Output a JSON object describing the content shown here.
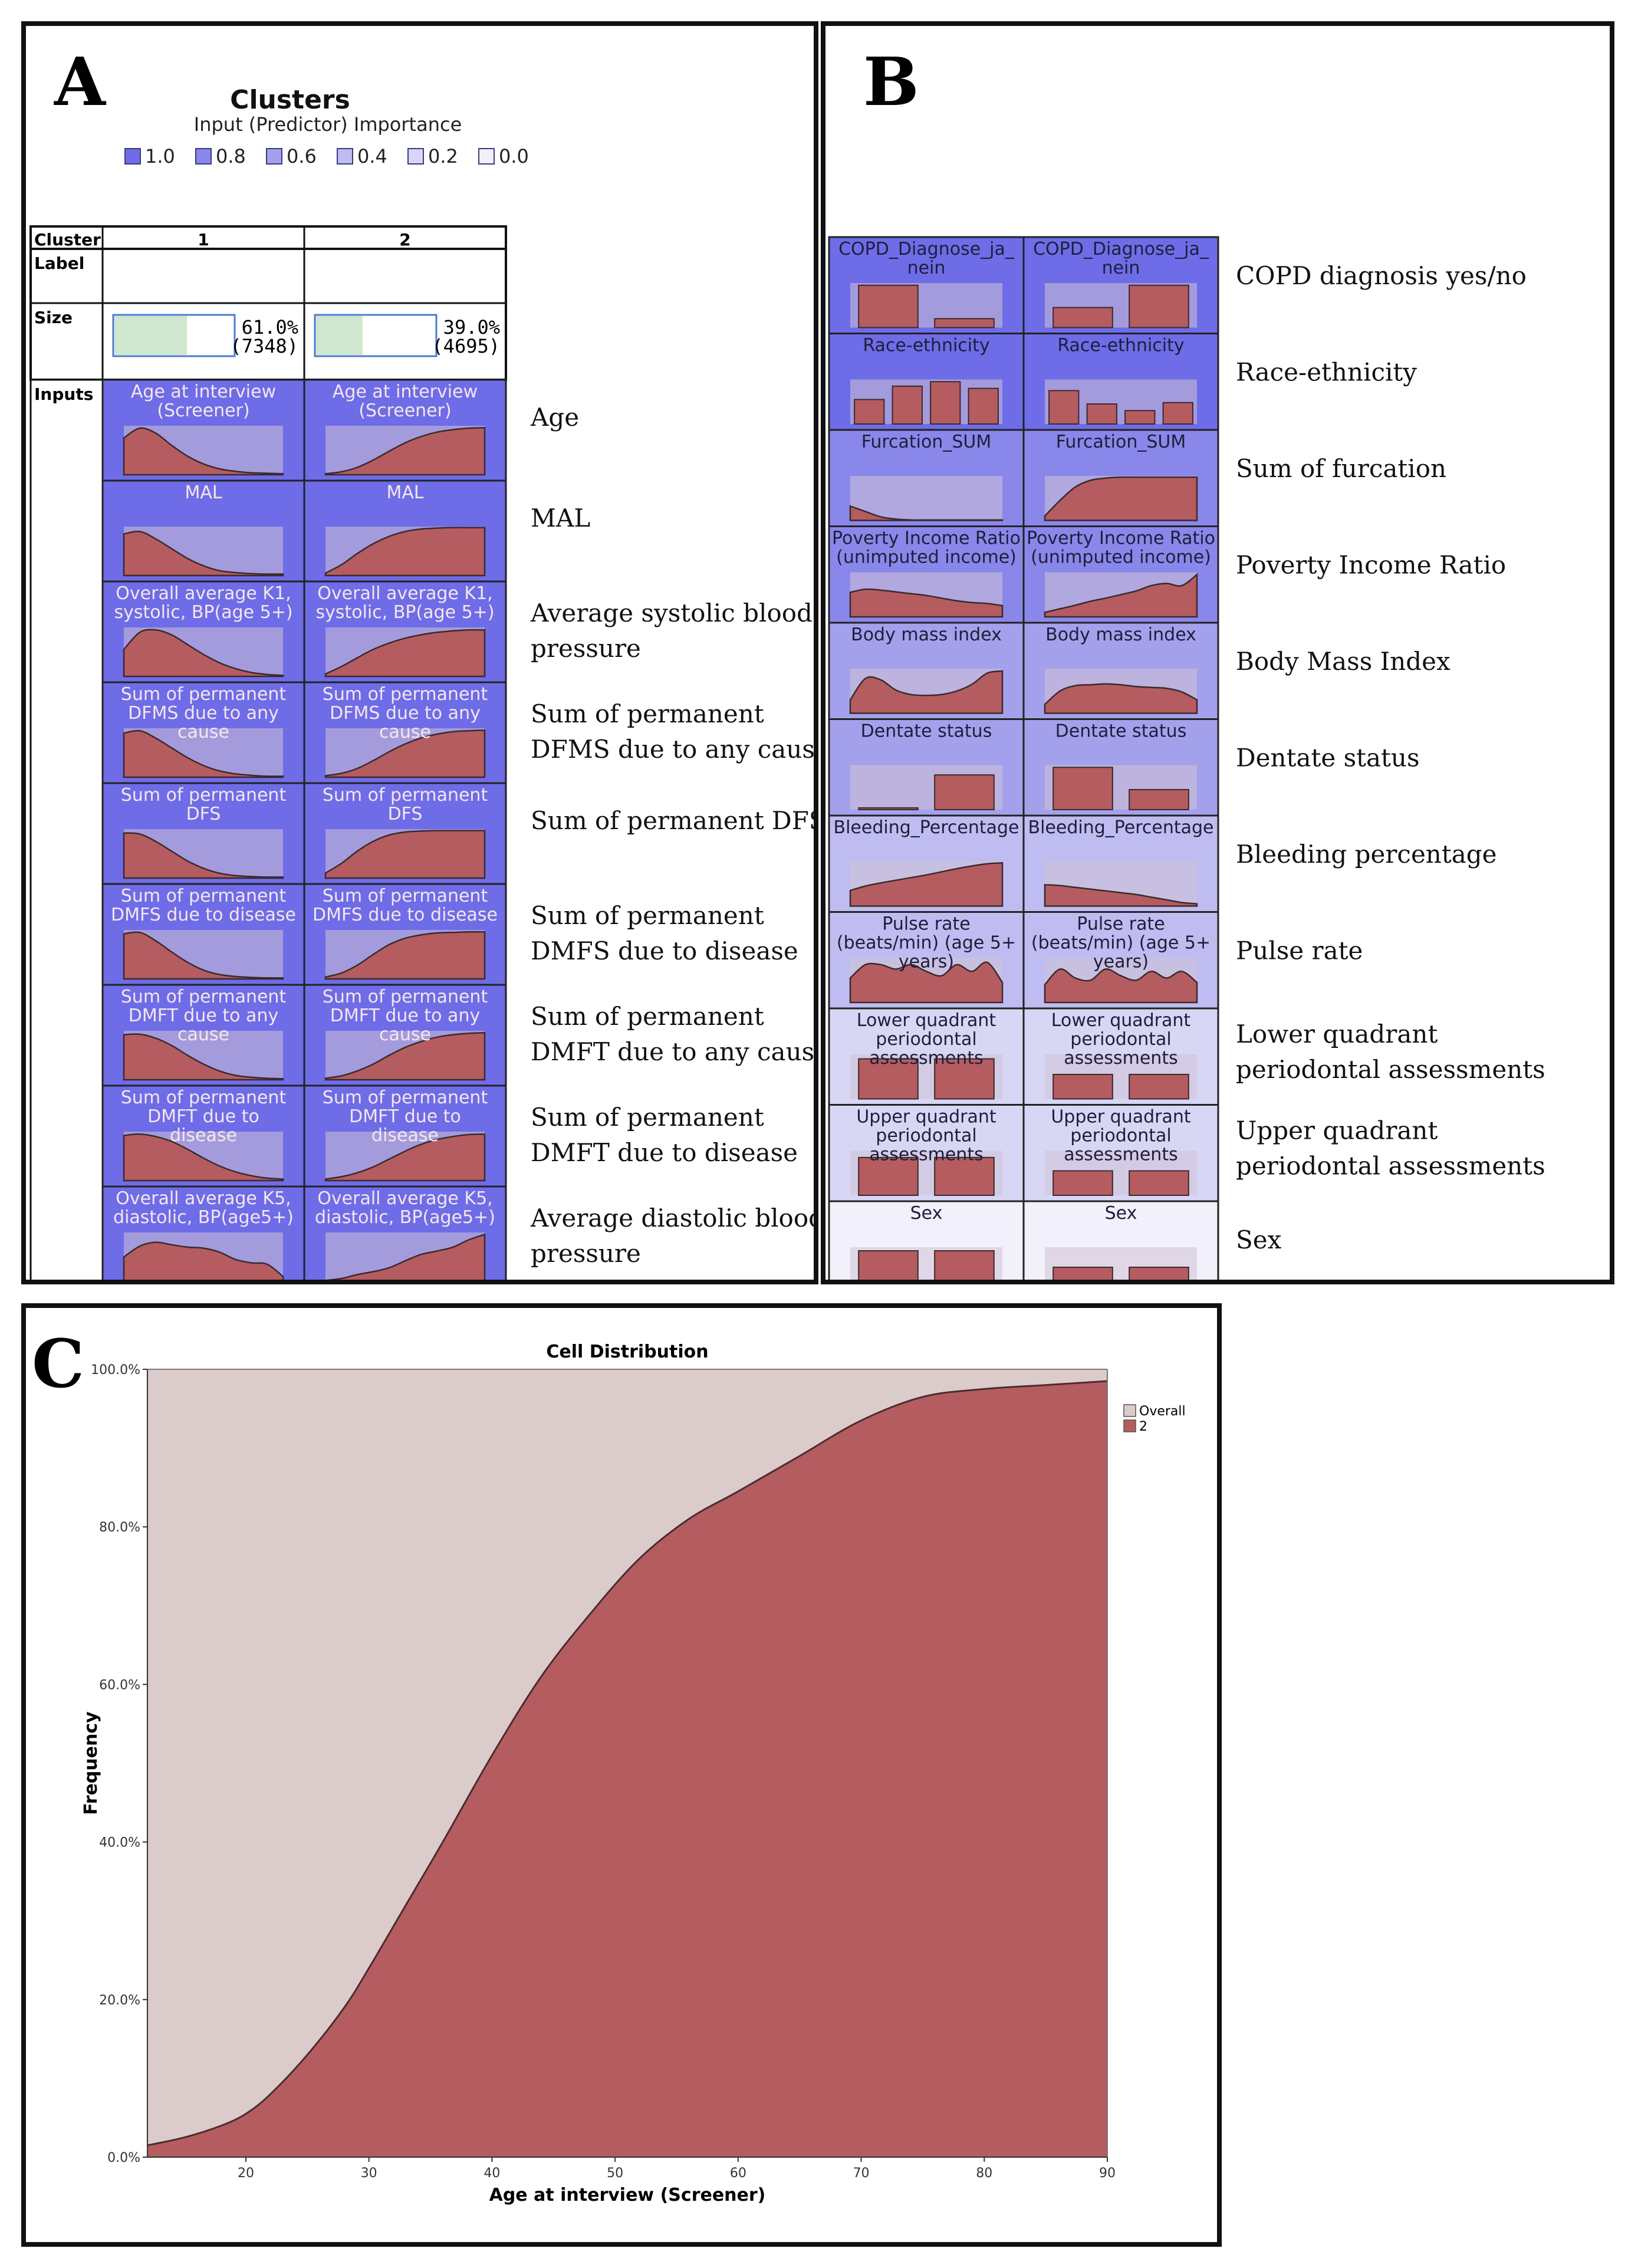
{
  "panel_labels": {
    "a": "A",
    "b": "B",
    "c": "C"
  },
  "colors": {
    "importance_high": "#7b78e8",
    "importance_mid": "#a9a2dd",
    "cluster_red": "#b55c60",
    "overall_pink": "#dccbcb",
    "cell_bg": "#cfc3d3"
  },
  "chart_data": [
    {
      "type": "table",
      "title": "Clusters",
      "legend": {
        "title": "Input (Predictor) Importance",
        "levels": [
          "1.0",
          "0.8",
          "0.6",
          "0.4",
          "0.2",
          "0.0"
        ],
        "colors": [
          "#6f6ce8",
          "#8a87ea",
          "#a4a1ec",
          "#bebcf0",
          "#d8d6f5",
          "#f1f0fb"
        ]
      },
      "header": {
        "cluster": "Cluster",
        "label": "Label",
        "size": "Size",
        "inputs": "Inputs"
      },
      "clusters": [
        {
          "name": "1",
          "size_pct": "61.0%",
          "size_n": "(7348)",
          "fraction": 0.61
        },
        {
          "name": "2",
          "size_pct": "39.0%",
          "size_n": "(4695)",
          "fraction": 0.39
        }
      ],
      "rows": [
        {
          "title": [
            "Age at interview",
            "(Screener)"
          ],
          "desc": [
            "Age"
          ],
          "importance": 1.0,
          "c1": [
            0.75,
            0.95,
            0.85,
            0.6,
            0.38,
            0.22,
            0.12,
            0.07,
            0.04,
            0.03,
            0.02
          ],
          "c2": [
            0.02,
            0.06,
            0.15,
            0.3,
            0.48,
            0.65,
            0.78,
            0.87,
            0.92,
            0.95,
            0.96
          ]
        },
        {
          "title": [
            "MAL"
          ],
          "desc": [
            "MAL"
          ],
          "importance": 1.0,
          "c1": [
            0.85,
            0.9,
            0.75,
            0.55,
            0.35,
            0.2,
            0.1,
            0.06,
            0.04,
            0.03,
            0.03
          ],
          "c2": [
            0.05,
            0.22,
            0.45,
            0.65,
            0.8,
            0.9,
            0.95,
            0.97,
            0.98,
            0.98,
            0.98
          ]
        },
        {
          "title": [
            "Overall average K1,",
            "systolic, BP(age 5+)"
          ],
          "desc": [
            "Average systolic blood",
            "pressure"
          ],
          "importance": 1.0,
          "c1": [
            0.55,
            0.9,
            0.95,
            0.85,
            0.65,
            0.45,
            0.28,
            0.16,
            0.08,
            0.04,
            0.02
          ],
          "c2": [
            0.05,
            0.2,
            0.38,
            0.55,
            0.68,
            0.78,
            0.85,
            0.9,
            0.93,
            0.95,
            0.95
          ]
        },
        {
          "title": [
            "Sum of permanent",
            "DFMS due to any",
            "cause"
          ],
          "desc": [
            "Sum of permanent",
            "DFMS due to any cause"
          ],
          "importance": 1.0,
          "c1": [
            0.9,
            0.95,
            0.8,
            0.6,
            0.4,
            0.24,
            0.13,
            0.07,
            0.04,
            0.02,
            0.02
          ],
          "c2": [
            0.03,
            0.08,
            0.18,
            0.34,
            0.52,
            0.68,
            0.8,
            0.88,
            0.93,
            0.95,
            0.96
          ]
        },
        {
          "title": [
            "Sum of permanent",
            "DFS"
          ],
          "desc": [
            "Sum of permanent DFS"
          ],
          "importance": 1.0,
          "c1": [
            0.92,
            0.9,
            0.75,
            0.55,
            0.35,
            0.2,
            0.1,
            0.05,
            0.03,
            0.02,
            0.02
          ],
          "c2": [
            0.1,
            0.3,
            0.55,
            0.75,
            0.88,
            0.94,
            0.96,
            0.97,
            0.97,
            0.97,
            0.97
          ]
        },
        {
          "title": [
            "Sum of permanent",
            "DMFS due to disease"
          ],
          "desc": [
            "Sum of permanent",
            "DMFS due to disease"
          ],
          "importance": 1.0,
          "c1": [
            0.92,
            0.95,
            0.78,
            0.55,
            0.34,
            0.18,
            0.09,
            0.05,
            0.03,
            0.02,
            0.02
          ],
          "c2": [
            0.04,
            0.12,
            0.28,
            0.5,
            0.7,
            0.83,
            0.9,
            0.94,
            0.95,
            0.96,
            0.96
          ]
        },
        {
          "title": [
            "Sum of permanent",
            "DMFT due to any",
            "cause"
          ],
          "desc": [
            "Sum of permanent",
            "DMFT due to any cause"
          ],
          "importance": 1.0,
          "c1": [
            0.92,
            0.93,
            0.85,
            0.7,
            0.5,
            0.32,
            0.18,
            0.09,
            0.05,
            0.03,
            0.02
          ],
          "c2": [
            0.03,
            0.08,
            0.18,
            0.32,
            0.5,
            0.66,
            0.78,
            0.87,
            0.92,
            0.95,
            0.96
          ]
        },
        {
          "title": [
            "Sum of permanent",
            "DMFT due to",
            "disease"
          ],
          "desc": [
            "Sum of permanent",
            "DMFT due to disease"
          ],
          "importance": 1.0,
          "c1": [
            0.92,
            0.95,
            0.9,
            0.8,
            0.64,
            0.46,
            0.3,
            0.18,
            0.1,
            0.05,
            0.03
          ],
          "c2": [
            0.03,
            0.08,
            0.16,
            0.28,
            0.44,
            0.6,
            0.74,
            0.84,
            0.9,
            0.94,
            0.95
          ]
        },
        {
          "title": [
            "Overall average K5,",
            "diastolic, BP(age5+)"
          ],
          "desc": [
            "Average diastolic blood",
            "pressure"
          ],
          "importance": 1.0,
          "c1": [
            0.5,
            0.72,
            0.8,
            0.75,
            0.7,
            0.68,
            0.6,
            0.45,
            0.38,
            0.35,
            0.1
          ],
          "c2": [
            0.02,
            0.06,
            0.14,
            0.2,
            0.28,
            0.42,
            0.55,
            0.62,
            0.7,
            0.85,
            0.96
          ]
        }
      ]
    },
    {
      "type": "table",
      "rows": [
        {
          "title": [
            "COPD_Diagnose_ja_",
            "nein"
          ],
          "desc": [
            "COPD diagnosis yes/no"
          ],
          "importance": 1.0,
          "kind": "bar",
          "c1": [
            0.95,
            0.2
          ],
          "c2": [
            0.45,
            0.95
          ]
        },
        {
          "title": [
            "Race-ethnicity"
          ],
          "desc": [
            "Race-ethnicity"
          ],
          "importance": 1.0,
          "kind": "bar",
          "c1": [
            0.55,
            0.85,
            0.95,
            0.8
          ],
          "c2": [
            0.75,
            0.45,
            0.3,
            0.48
          ]
        },
        {
          "title": [
            "Furcation_SUM"
          ],
          "desc": [
            "Sum of furcation"
          ],
          "importance": 0.8,
          "kind": "area",
          "c1": [
            0.32,
            0.2,
            0.08,
            0.03,
            0.01,
            0.01,
            0.01,
            0.01,
            0.01,
            0.01,
            0.01
          ],
          "c2": [
            0.1,
            0.45,
            0.75,
            0.9,
            0.95,
            0.97,
            0.97,
            0.97,
            0.97,
            0.97,
            0.97
          ]
        },
        {
          "title": [
            "Poverty Income Ratio",
            "(unimputed income)"
          ],
          "desc": [
            "Poverty Income Ratio"
          ],
          "importance": 0.8,
          "kind": "area",
          "c1": [
            0.55,
            0.62,
            0.6,
            0.56,
            0.52,
            0.48,
            0.42,
            0.36,
            0.32,
            0.3,
            0.25
          ],
          "c2": [
            0.1,
            0.18,
            0.26,
            0.35,
            0.42,
            0.5,
            0.58,
            0.7,
            0.75,
            0.7,
            0.95
          ]
        },
        {
          "title": [
            "Body mass index"
          ],
          "desc": [
            "Body Mass Index"
          ],
          "importance": 0.6,
          "kind": "area",
          "c1": [
            0.3,
            0.78,
            0.75,
            0.52,
            0.42,
            0.4,
            0.42,
            0.5,
            0.65,
            0.9,
            0.95
          ],
          "c2": [
            0.2,
            0.5,
            0.62,
            0.64,
            0.66,
            0.64,
            0.6,
            0.58,
            0.56,
            0.48,
            0.3
          ]
        },
        {
          "title": [
            "Dentate status"
          ],
          "desc": [
            "Dentate status"
          ],
          "importance": 0.6,
          "kind": "bar",
          "c1": [
            0.04,
            0.78
          ],
          "c2": [
            0.95,
            0.45
          ]
        },
        {
          "title": [
            "Bleeding_Percentage"
          ],
          "desc": [
            "Bleeding percentage"
          ],
          "importance": 0.4,
          "kind": "area",
          "c1": [
            0.35,
            0.45,
            0.52,
            0.58,
            0.64,
            0.7,
            0.77,
            0.84,
            0.9,
            0.95,
            0.97
          ],
          "c2": [
            0.48,
            0.46,
            0.42,
            0.38,
            0.34,
            0.3,
            0.26,
            0.2,
            0.14,
            0.08,
            0.05
          ]
        },
        {
          "title": [
            "Pulse rate",
            "(beats/min) (age 5+",
            "years)"
          ],
          "desc": [
            "Pulse rate"
          ],
          "importance": 0.4,
          "kind": "area",
          "c1": [
            0.55,
            0.85,
            0.85,
            0.75,
            0.85,
            0.7,
            0.6,
            0.85,
            0.7,
            0.9,
            0.45
          ],
          "c2": [
            0.4,
            0.75,
            0.55,
            0.5,
            0.75,
            0.6,
            0.5,
            0.7,
            0.55,
            0.7,
            0.45
          ]
        },
        {
          "title": [
            "Lower quadrant",
            "periodontal",
            "assessments"
          ],
          "desc": [
            "Lower quadrant",
            "periodontal assessments"
          ],
          "importance": 0.2,
          "kind": "bar",
          "c1": [
            0.9,
            0.9
          ],
          "c2": [
            0.55,
            0.55
          ]
        },
        {
          "title": [
            "Upper quadrant",
            "periodontal",
            "assessments"
          ],
          "desc": [
            "Upper quadrant",
            "periodontal assessments"
          ],
          "importance": 0.2,
          "kind": "bar",
          "c1": [
            0.85,
            0.85
          ],
          "c2": [
            0.55,
            0.55
          ]
        },
        {
          "title": [
            "Sex"
          ],
          "desc": [
            "Sex"
          ],
          "importance": 0.0,
          "kind": "bar",
          "c1": [
            0.92,
            0.92
          ],
          "c2": [
            0.55,
            0.55
          ]
        }
      ]
    },
    {
      "type": "area",
      "title": "Cell Distribution",
      "xlabel": "Age at interview (Screener)",
      "ylabel": "Frequency",
      "xlim": [
        12,
        90
      ],
      "ylim": [
        0,
        100
      ],
      "xticks": [
        20,
        30,
        40,
        50,
        60,
        70,
        80,
        90
      ],
      "yticks": [
        0,
        20,
        40,
        60,
        80,
        100
      ],
      "ytick_labels": [
        "0.0%",
        "20.0%",
        "40.0%",
        "60.0%",
        "80.0%",
        "100.0%"
      ],
      "legend": [
        "Overall",
        "2"
      ],
      "series": [
        {
          "name": "Overall",
          "x": [
            12,
            90
          ],
          "y": [
            100,
            100
          ]
        },
        {
          "name": "2",
          "x": [
            12,
            15,
            18,
            20,
            22,
            25,
            28,
            30,
            33,
            36,
            40,
            44,
            48,
            52,
            56,
            60,
            65,
            70,
            75,
            80,
            85,
            90
          ],
          "y": [
            1.5,
            2.5,
            4,
            5.5,
            8,
            13,
            19,
            24,
            32,
            40,
            51,
            61,
            69,
            76,
            81,
            84.5,
            89,
            93.5,
            96.5,
            97.5,
            98,
            98.5
          ]
        }
      ]
    }
  ]
}
